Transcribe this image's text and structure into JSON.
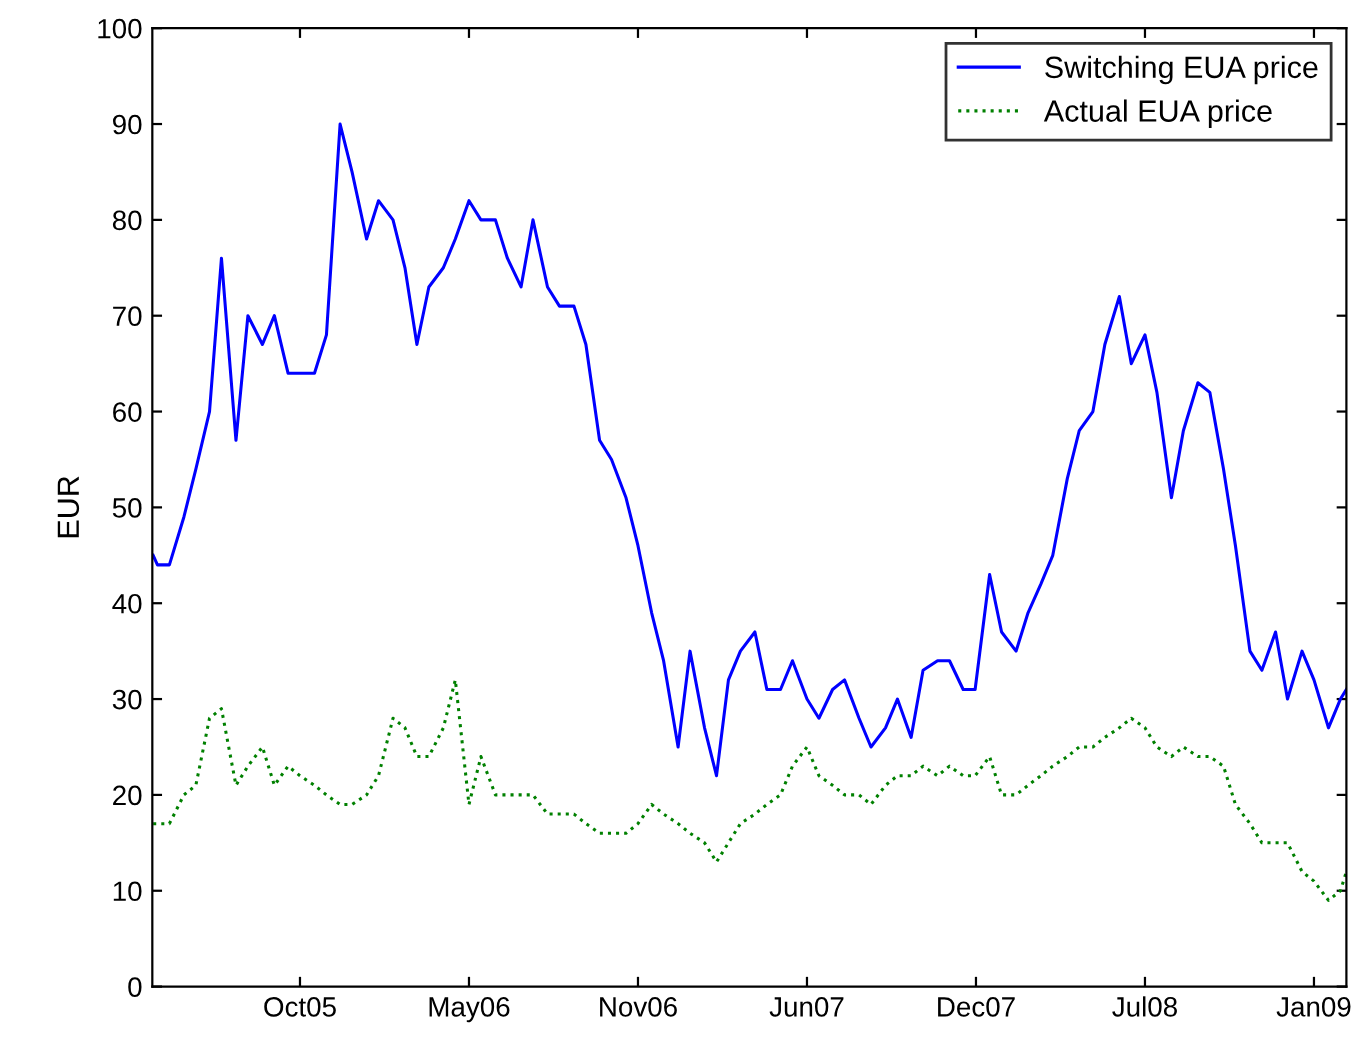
{
  "chart_data": {
    "type": "line",
    "ylabel": "EUR",
    "x": [
      "2005-04-26",
      "2005-05-01",
      "2005-05-15",
      "2005-06-01",
      "2005-06-15",
      "2005-07-01",
      "2005-07-15",
      "2005-08-01",
      "2005-08-15",
      "2005-09-01",
      "2005-09-15",
      "2005-10-01",
      "2005-10-15",
      "2005-11-01",
      "2005-11-15",
      "2005-12-01",
      "2005-12-15",
      "2006-01-01",
      "2006-01-15",
      "2006-02-01",
      "2006-02-15",
      "2006-03-01",
      "2006-03-15",
      "2006-04-01",
      "2006-04-15",
      "2006-05-01",
      "2006-05-15",
      "2006-06-01",
      "2006-06-15",
      "2006-07-01",
      "2006-07-15",
      "2006-08-01",
      "2006-08-15",
      "2006-09-01",
      "2006-09-15",
      "2006-10-01",
      "2006-10-15",
      "2006-11-01",
      "2006-11-15",
      "2006-12-01",
      "2006-12-15",
      "2007-01-01",
      "2007-01-15",
      "2007-02-01",
      "2007-02-15",
      "2007-03-01",
      "2007-03-15",
      "2007-04-01",
      "2007-04-15",
      "2007-05-01",
      "2007-05-15",
      "2007-06-01",
      "2007-06-15",
      "2007-07-01",
      "2007-07-15",
      "2007-08-01",
      "2007-08-15",
      "2007-09-01",
      "2007-09-15",
      "2007-10-01",
      "2007-10-15",
      "2007-11-01",
      "2007-11-15",
      "2007-12-01",
      "2007-12-15",
      "2008-01-01",
      "2008-01-15",
      "2008-02-01",
      "2008-02-15",
      "2008-03-01",
      "2008-03-15",
      "2008-04-01",
      "2008-04-15",
      "2008-05-01",
      "2008-05-15",
      "2008-06-01",
      "2008-06-15",
      "2008-07-01",
      "2008-07-15",
      "2008-08-01",
      "2008-08-15",
      "2008-09-01",
      "2008-09-15",
      "2008-10-01",
      "2008-10-15",
      "2008-11-01",
      "2008-11-15",
      "2008-12-01",
      "2008-12-15",
      "2009-01-01",
      "2009-01-15",
      "2009-02-01",
      "2009-02-15",
      "2009-02-22"
    ],
    "series": [
      {
        "name": "Switching EUA price",
        "color": "#0000ff",
        "line_style": "solid",
        "values": [
          45,
          44,
          44,
          49,
          54,
          60,
          76,
          57,
          70,
          67,
          70,
          64,
          64,
          64,
          68,
          90,
          85,
          78,
          82,
          80,
          75,
          67,
          73,
          75,
          78,
          82,
          80,
          80,
          76,
          73,
          80,
          73,
          71,
          71,
          67,
          57,
          55,
          51,
          46,
          39,
          34,
          25,
          35,
          27,
          22,
          32,
          35,
          37,
          31,
          31,
          34,
          30,
          28,
          31,
          32,
          28,
          25,
          27,
          30,
          26,
          33,
          34,
          34,
          31,
          31,
          43,
          37,
          35,
          39,
          42,
          45,
          53,
          58,
          60,
          67,
          72,
          65,
          68,
          62,
          51,
          58,
          63,
          62,
          54,
          46,
          35,
          33,
          37,
          30,
          35,
          32,
          27,
          30,
          31
        ]
      },
      {
        "name": "Actual EUA price",
        "color": "#008000",
        "line_style": "dotted",
        "values": [
          17,
          17,
          17,
          20,
          21,
          28,
          29,
          21,
          23,
          25,
          21,
          23,
          22,
          21,
          20,
          19,
          19,
          20,
          22,
          28,
          27,
          24,
          24,
          27,
          32,
          19,
          24,
          20,
          20,
          20,
          20,
          18,
          18,
          18,
          17,
          16,
          16,
          16,
          17,
          19,
          18,
          17,
          16,
          15,
          13,
          15,
          17,
          18,
          19,
          20,
          23,
          25,
          22,
          21,
          20,
          20,
          19,
          21,
          22,
          22,
          23,
          22,
          23,
          22,
          22,
          24,
          20,
          20,
          21,
          22,
          23,
          24,
          25,
          25,
          26,
          27,
          28,
          27,
          25,
          24,
          25,
          24,
          24,
          23,
          19,
          17,
          15,
          15,
          15,
          12,
          11,
          9,
          10,
          12
        ]
      }
    ],
    "xlim": [
      "2005-04-25",
      "2009-02-22"
    ],
    "xticks": [
      {
        "value": "2005-10-15",
        "label": "Oct05"
      },
      {
        "value": "2006-05-01",
        "label": "May06"
      },
      {
        "value": "2006-11-15",
        "label": "Nov06"
      },
      {
        "value": "2007-06-01",
        "label": "Jun07"
      },
      {
        "value": "2007-12-16",
        "label": "Dec07"
      },
      {
        "value": "2008-07-01",
        "label": "Jul08"
      },
      {
        "value": "2009-01-15",
        "label": "Jan09"
      }
    ],
    "ylim": [
      0,
      100
    ],
    "yticks": [
      0,
      10,
      20,
      30,
      40,
      50,
      60,
      70,
      80,
      90,
      100
    ],
    "grid": false,
    "legend": "top right",
    "marker": "none"
  }
}
